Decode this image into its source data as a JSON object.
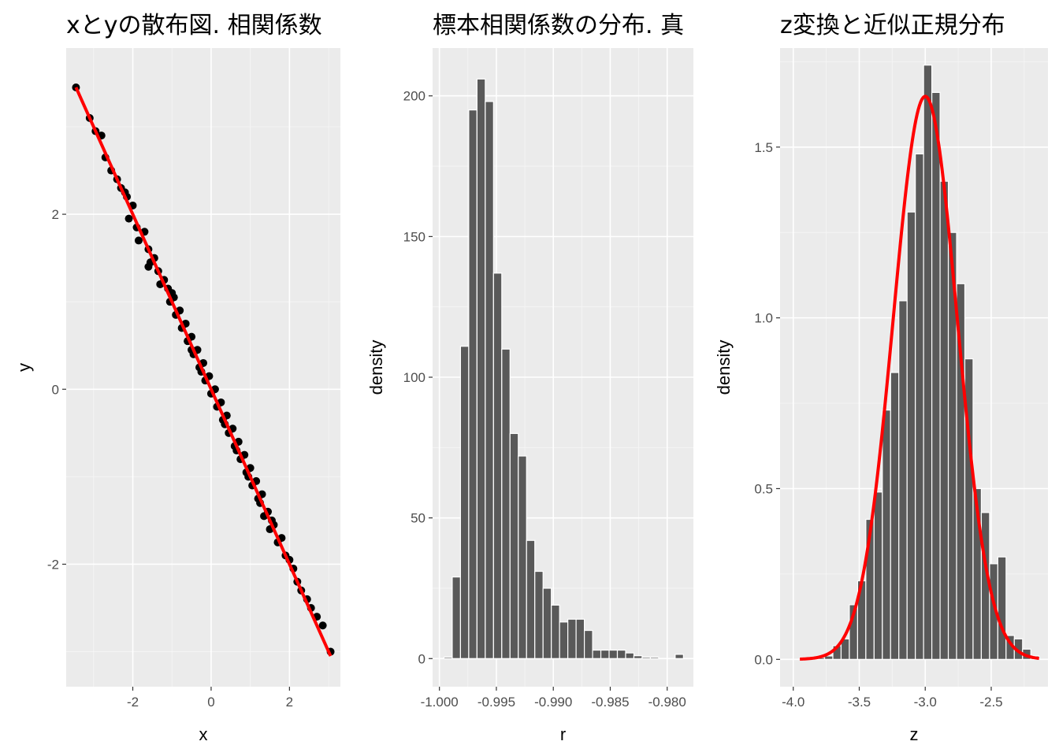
{
  "chart_data": [
    {
      "type": "scatter",
      "title": "xとyの散布図. 相関係数",
      "xlabel": "x",
      "ylabel": "y",
      "xlim": [
        -3.7,
        3.3
      ],
      "ylim": [
        -3.4,
        3.9
      ],
      "xticks": [
        -2,
        0,
        2
      ],
      "yticks": [
        -2,
        0,
        2
      ],
      "points": [
        [
          -3.45,
          3.45
        ],
        [
          -3.1,
          3.1
        ],
        [
          -2.95,
          2.95
        ],
        [
          -2.8,
          2.9
        ],
        [
          -2.7,
          2.65
        ],
        [
          -2.55,
          2.5
        ],
        [
          -2.4,
          2.4
        ],
        [
          -2.3,
          2.3
        ],
        [
          -2.15,
          2.2
        ],
        [
          -2.1,
          1.95
        ],
        [
          -2.0,
          2.1
        ],
        [
          -1.9,
          1.85
        ],
        [
          -1.85,
          1.7
        ],
        [
          -1.7,
          1.8
        ],
        [
          -1.6,
          1.6
        ],
        [
          -1.55,
          1.45
        ],
        [
          -1.45,
          1.5
        ],
        [
          -1.35,
          1.35
        ],
        [
          -1.3,
          1.2
        ],
        [
          -1.2,
          1.25
        ],
        [
          -1.1,
          1.15
        ],
        [
          -1.05,
          1.0
        ],
        [
          -0.95,
          1.05
        ],
        [
          -0.9,
          0.85
        ],
        [
          -0.8,
          0.9
        ],
        [
          -0.75,
          0.7
        ],
        [
          -0.65,
          0.75
        ],
        [
          -0.6,
          0.55
        ],
        [
          -0.5,
          0.6
        ],
        [
          -0.45,
          0.4
        ],
        [
          -0.35,
          0.45
        ],
        [
          -0.3,
          0.25
        ],
        [
          -0.2,
          0.3
        ],
        [
          -0.15,
          0.1
        ],
        [
          -0.05,
          0.15
        ],
        [
          0.0,
          -0.05
        ],
        [
          0.1,
          0.0
        ],
        [
          0.15,
          -0.2
        ],
        [
          0.25,
          -0.15
        ],
        [
          0.3,
          -0.35
        ],
        [
          0.4,
          -0.3
        ],
        [
          0.45,
          -0.5
        ],
        [
          0.55,
          -0.45
        ],
        [
          0.6,
          -0.65
        ],
        [
          0.7,
          -0.6
        ],
        [
          0.75,
          -0.8
        ],
        [
          0.85,
          -0.75
        ],
        [
          0.9,
          -0.95
        ],
        [
          1.0,
          -0.9
        ],
        [
          1.05,
          -1.1
        ],
        [
          1.15,
          -1.05
        ],
        [
          1.2,
          -1.25
        ],
        [
          1.3,
          -1.2
        ],
        [
          1.35,
          -1.45
        ],
        [
          1.45,
          -1.4
        ],
        [
          1.5,
          -1.6
        ],
        [
          1.6,
          -1.55
        ],
        [
          1.7,
          -1.75
        ],
        [
          1.8,
          -1.7
        ],
        [
          1.9,
          -1.9
        ],
        [
          2.0,
          -1.95
        ],
        [
          2.1,
          -2.05
        ],
        [
          2.2,
          -2.2
        ],
        [
          2.3,
          -2.3
        ],
        [
          2.45,
          -2.4
        ],
        [
          2.55,
          -2.5
        ],
        [
          2.7,
          -2.6
        ],
        [
          2.85,
          -2.7
        ],
        [
          3.05,
          -3.0
        ],
        [
          -1.6,
          1.4
        ],
        [
          -1.0,
          1.1
        ],
        [
          -0.5,
          0.45
        ],
        [
          0.35,
          -0.4
        ],
        [
          0.95,
          -1.0
        ],
        [
          1.55,
          -1.5
        ],
        [
          -2.2,
          2.25
        ],
        [
          -0.25,
          0.2
        ],
        [
          0.65,
          -0.7
        ],
        [
          1.25,
          -1.3
        ]
      ],
      "line": {
        "x": [
          -3.45,
          3.05
        ],
        "y": [
          3.45,
          -3.05
        ],
        "color": "#ff0000"
      }
    },
    {
      "type": "bar",
      "title": "標本相関係数の分布. 真",
      "xlabel": "r",
      "ylabel": "density",
      "xlim": [
        -1.0006,
        -0.9777
      ],
      "ylim": [
        -10,
        217
      ],
      "xticks": [
        -1.0,
        -0.995,
        -0.99,
        -0.985,
        -0.98
      ],
      "xticklabels": [
        "-1.000",
        "-0.995",
        "-0.990",
        "-0.985",
        "-0.980"
      ],
      "yticks": [
        0,
        50,
        100,
        150,
        200
      ],
      "bin_width": 0.000725,
      "bin_start": -0.9996,
      "values": [
        0.5,
        29,
        111,
        195,
        206,
        198,
        137,
        110,
        80,
        72,
        42,
        31,
        25,
        19,
        13,
        14,
        14,
        10,
        3,
        3,
        3,
        3,
        2,
        1,
        0.5,
        0.5,
        0,
        0,
        1.5
      ],
      "bar_color": "#595959"
    },
    {
      "type": "bar",
      "title": "z変換と近似正規分布",
      "xlabel": "z",
      "ylabel": "density",
      "xlim": [
        -4.1,
        -2.07
      ],
      "ylim": [
        -0.08,
        1.79
      ],
      "xticks": [
        -4.0,
        -3.5,
        -3.0,
        -2.5
      ],
      "xticklabels": [
        "-4.0",
        "-3.5",
        "-3.0",
        "-2.5"
      ],
      "yticks": [
        0.0,
        0.5,
        1.0,
        1.5
      ],
      "yticklabels": [
        "0.0",
        "0.5",
        "1.0",
        "1.5"
      ],
      "bin_width": 0.0625,
      "bin_start": -3.95,
      "values": [
        0.005,
        0.005,
        0.005,
        0.01,
        0.04,
        0.06,
        0.16,
        0.23,
        0.41,
        0.49,
        0.73,
        0.84,
        1.05,
        1.31,
        1.48,
        1.74,
        1.66,
        1.4,
        1.25,
        1.1,
        0.88,
        0.5,
        0.43,
        0.28,
        0.3,
        0.07,
        0.06,
        0.03,
        0.01
      ],
      "bar_color": "#595959",
      "normal_curve": {
        "mean": -3.0,
        "sd": 0.242,
        "color": "#ff0000"
      }
    }
  ]
}
